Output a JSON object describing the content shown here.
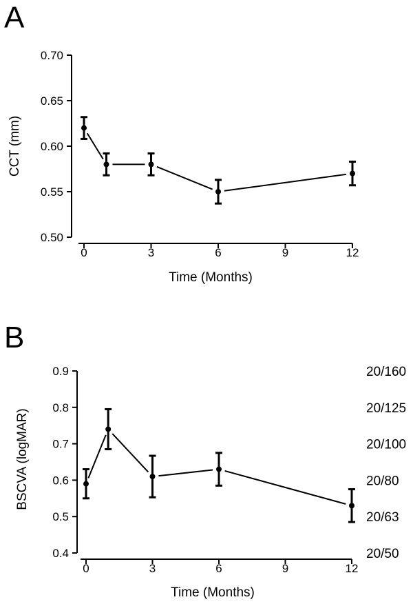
{
  "chart_data": [
    {
      "panel": "A",
      "type": "line",
      "xlabel": "Time (Months)",
      "ylabel": "CCT (mm)",
      "xlim": [
        0,
        12
      ],
      "ylim": [
        0.5,
        0.7
      ],
      "xticks": [
        "0",
        "3",
        "6",
        "9",
        "12"
      ],
      "yticks": [
        "0.50",
        "0.55",
        "0.60",
        "0.65",
        "0.70"
      ],
      "series": [
        {
          "x": [
            0,
            1,
            3,
            6,
            12
          ],
          "y": [
            0.62,
            0.58,
            0.58,
            0.55,
            0.57
          ],
          "error": [
            0.012,
            0.012,
            0.012,
            0.013,
            0.013
          ]
        }
      ]
    },
    {
      "panel": "B",
      "type": "line",
      "xlabel": "Time (Months)",
      "ylabel": "BSCVA (logMAR)",
      "xlim": [
        0,
        12
      ],
      "ylim": [
        0.4,
        0.9
      ],
      "xticks": [
        "0",
        "3",
        "6",
        "9",
        "12"
      ],
      "yticks": [
        "0.4",
        "0.5",
        "0.6",
        "0.7",
        "0.8",
        "0.9"
      ],
      "right_labels": [
        {
          "text": "20/160",
          "y": 0.9
        },
        {
          "text": "20/125",
          "y": 0.8
        },
        {
          "text": "20/100",
          "y": 0.7
        },
        {
          "text": "20/80",
          "y": 0.6
        },
        {
          "text": "20/63",
          "y": 0.5
        },
        {
          "text": "20/50",
          "y": 0.4
        }
      ],
      "series": [
        {
          "x": [
            0,
            1,
            3,
            6,
            12
          ],
          "y": [
            0.59,
            0.74,
            0.61,
            0.63,
            0.53
          ],
          "error": [
            0.04,
            0.055,
            0.057,
            0.045,
            0.045
          ]
        }
      ]
    }
  ]
}
